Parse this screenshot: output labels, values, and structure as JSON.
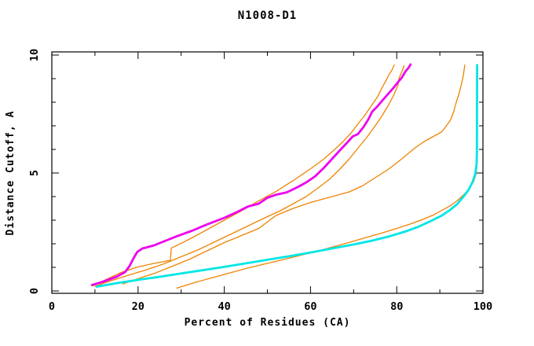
{
  "chart_data": {
    "type": "line",
    "title": "N1008-D1",
    "xlabel": "Percent of Residues (CA)",
    "ylabel": "Distance Cutoff, A",
    "xlim": [
      0,
      100
    ],
    "ylim": [
      0,
      10
    ],
    "x_major_ticks": [
      0,
      20,
      40,
      60,
      80,
      100
    ],
    "x_minor_tick_step": 10,
    "y_major_ticks": [
      0,
      5,
      10
    ],
    "y_minor_tick_step": 1,
    "grid": false,
    "legend": "none",
    "frame_color": "#000000",
    "background_color": "#ffffff",
    "series": [
      {
        "name": "model-orange-1",
        "color": "#ef8300",
        "width": 1.3,
        "points": [
          [
            9.5,
            0.22
          ],
          [
            13,
            0.52
          ],
          [
            16,
            0.78
          ],
          [
            20,
            1.02
          ],
          [
            24,
            1.18
          ],
          [
            27.5,
            1.3
          ],
          [
            27.7,
            1.82
          ],
          [
            30,
            2.02
          ],
          [
            33,
            2.3
          ],
          [
            36,
            2.6
          ],
          [
            40,
            3.0
          ],
          [
            44,
            3.4
          ],
          [
            48,
            3.82
          ],
          [
            52,
            4.22
          ],
          [
            56,
            4.68
          ],
          [
            60,
            5.18
          ],
          [
            63,
            5.58
          ],
          [
            65.5,
            5.98
          ],
          [
            67.5,
            6.32
          ],
          [
            69.5,
            6.72
          ],
          [
            71,
            7.08
          ],
          [
            72.5,
            7.42
          ],
          [
            74,
            7.82
          ],
          [
            75.5,
            8.22
          ],
          [
            76.5,
            8.58
          ],
          [
            77.5,
            8.92
          ],
          [
            78.3,
            9.2
          ],
          [
            79,
            9.4
          ],
          [
            79.4,
            9.58
          ]
        ]
      },
      {
        "name": "model-orange-2",
        "color": "#ef8300",
        "width": 1.3,
        "points": [
          [
            10,
            0.2
          ],
          [
            14,
            0.45
          ],
          [
            18,
            0.68
          ],
          [
            22,
            0.9
          ],
          [
            26,
            1.15
          ],
          [
            30,
            1.45
          ],
          [
            34,
            1.75
          ],
          [
            38,
            2.1
          ],
          [
            42,
            2.45
          ],
          [
            46,
            2.8
          ],
          [
            50,
            3.15
          ],
          [
            53,
            3.4
          ],
          [
            56,
            3.7
          ],
          [
            59,
            4.0
          ],
          [
            62,
            4.4
          ],
          [
            64.5,
            4.75
          ],
          [
            67,
            5.2
          ],
          [
            69,
            5.6
          ],
          [
            71,
            6.05
          ],
          [
            73,
            6.5
          ],
          [
            75,
            7.0
          ],
          [
            76.5,
            7.4
          ],
          [
            78,
            7.85
          ],
          [
            79.3,
            8.3
          ],
          [
            80.3,
            8.72
          ],
          [
            80.5,
            9.0
          ],
          [
            81.2,
            9.3
          ],
          [
            81.7,
            9.55
          ]
        ]
      },
      {
        "name": "model-orange-3",
        "color": "#ef8300",
        "width": 1.3,
        "points": [
          [
            16.5,
            0.3
          ],
          [
            20,
            0.52
          ],
          [
            24,
            0.76
          ],
          [
            28,
            1.05
          ],
          [
            32,
            1.35
          ],
          [
            36,
            1.7
          ],
          [
            40,
            2.05
          ],
          [
            44,
            2.35
          ],
          [
            48,
            2.65
          ],
          [
            52,
            3.2
          ],
          [
            56,
            3.5
          ],
          [
            60,
            3.75
          ],
          [
            63,
            3.9
          ],
          [
            66,
            4.05
          ],
          [
            69,
            4.2
          ],
          [
            72,
            4.45
          ],
          [
            75,
            4.8
          ],
          [
            78,
            5.15
          ],
          [
            80.5,
            5.5
          ],
          [
            82.5,
            5.8
          ],
          [
            84.5,
            6.1
          ],
          [
            86.5,
            6.35
          ],
          [
            88.5,
            6.55
          ],
          [
            90.5,
            6.75
          ],
          [
            91.5,
            7.0
          ],
          [
            92.5,
            7.25
          ],
          [
            93.2,
            7.6
          ],
          [
            93.8,
            8.0
          ],
          [
            94.5,
            8.4
          ],
          [
            95.2,
            8.9
          ],
          [
            95.5,
            9.2
          ],
          [
            95.8,
            9.58
          ]
        ]
      },
      {
        "name": "model-orange-4",
        "color": "#ef8300",
        "width": 1.3,
        "points": [
          [
            29,
            0.12
          ],
          [
            33,
            0.35
          ],
          [
            37,
            0.55
          ],
          [
            41,
            0.75
          ],
          [
            45,
            0.95
          ],
          [
            49,
            1.13
          ],
          [
            53,
            1.3
          ],
          [
            57,
            1.48
          ],
          [
            61,
            1.66
          ],
          [
            65,
            1.86
          ],
          [
            69,
            2.06
          ],
          [
            73,
            2.27
          ],
          [
            77,
            2.48
          ],
          [
            80,
            2.65
          ],
          [
            83,
            2.83
          ],
          [
            86,
            3.03
          ],
          [
            88.5,
            3.22
          ],
          [
            90.5,
            3.42
          ],
          [
            92.5,
            3.62
          ],
          [
            94,
            3.82
          ],
          [
            95.5,
            4.07
          ],
          [
            96.8,
            4.32
          ],
          [
            97.8,
            4.62
          ],
          [
            98.4,
            4.95
          ],
          [
            98.6,
            5.3
          ],
          [
            98.7,
            5.65
          ]
        ]
      },
      {
        "name": "model-highlight-magenta",
        "color": "#ee00ee",
        "width": 2.8,
        "points": [
          [
            9.3,
            0.25
          ],
          [
            12,
            0.4
          ],
          [
            15,
            0.6
          ],
          [
            17,
            0.8
          ],
          [
            18,
            1.05
          ],
          [
            19,
            1.4
          ],
          [
            19.8,
            1.65
          ],
          [
            21,
            1.8
          ],
          [
            23.5,
            1.92
          ],
          [
            26,
            2.1
          ],
          [
            29,
            2.32
          ],
          [
            32.5,
            2.55
          ],
          [
            36,
            2.82
          ],
          [
            40,
            3.1
          ],
          [
            43,
            3.35
          ],
          [
            45.5,
            3.58
          ],
          [
            48,
            3.7
          ],
          [
            50,
            3.95
          ],
          [
            52,
            4.08
          ],
          [
            54.5,
            4.18
          ],
          [
            57,
            4.4
          ],
          [
            59,
            4.6
          ],
          [
            61,
            4.85
          ],
          [
            63,
            5.2
          ],
          [
            65,
            5.6
          ],
          [
            66.5,
            5.9
          ],
          [
            68.3,
            6.25
          ],
          [
            69.8,
            6.55
          ],
          [
            71,
            6.65
          ],
          [
            72.3,
            6.95
          ],
          [
            73.5,
            7.3
          ],
          [
            74.3,
            7.6
          ],
          [
            75.5,
            7.82
          ],
          [
            76.8,
            8.1
          ],
          [
            78,
            8.35
          ],
          [
            79.2,
            8.6
          ],
          [
            80.3,
            8.85
          ],
          [
            81.2,
            9.05
          ],
          [
            82,
            9.3
          ],
          [
            82.7,
            9.45
          ],
          [
            83.2,
            9.6
          ]
        ]
      },
      {
        "name": "model-highlight-cyan",
        "color": "#00e6e6",
        "width": 2.8,
        "points": [
          [
            10.4,
            0.18
          ],
          [
            15,
            0.33
          ],
          [
            20,
            0.47
          ],
          [
            25,
            0.6
          ],
          [
            30,
            0.74
          ],
          [
            35,
            0.88
          ],
          [
            40,
            1.02
          ],
          [
            45,
            1.17
          ],
          [
            50,
            1.32
          ],
          [
            55,
            1.47
          ],
          [
            60,
            1.63
          ],
          [
            65,
            1.8
          ],
          [
            70,
            1.97
          ],
          [
            74,
            2.12
          ],
          [
            78,
            2.3
          ],
          [
            82,
            2.52
          ],
          [
            85,
            2.72
          ],
          [
            88,
            2.97
          ],
          [
            90.5,
            3.2
          ],
          [
            92.5,
            3.45
          ],
          [
            94,
            3.68
          ],
          [
            95.5,
            4.0
          ],
          [
            96.7,
            4.3
          ],
          [
            97.6,
            4.62
          ],
          [
            98.2,
            4.95
          ],
          [
            98.5,
            5.35
          ],
          [
            98.6,
            5.9
          ],
          [
            98.65,
            9.58
          ]
        ]
      }
    ]
  }
}
